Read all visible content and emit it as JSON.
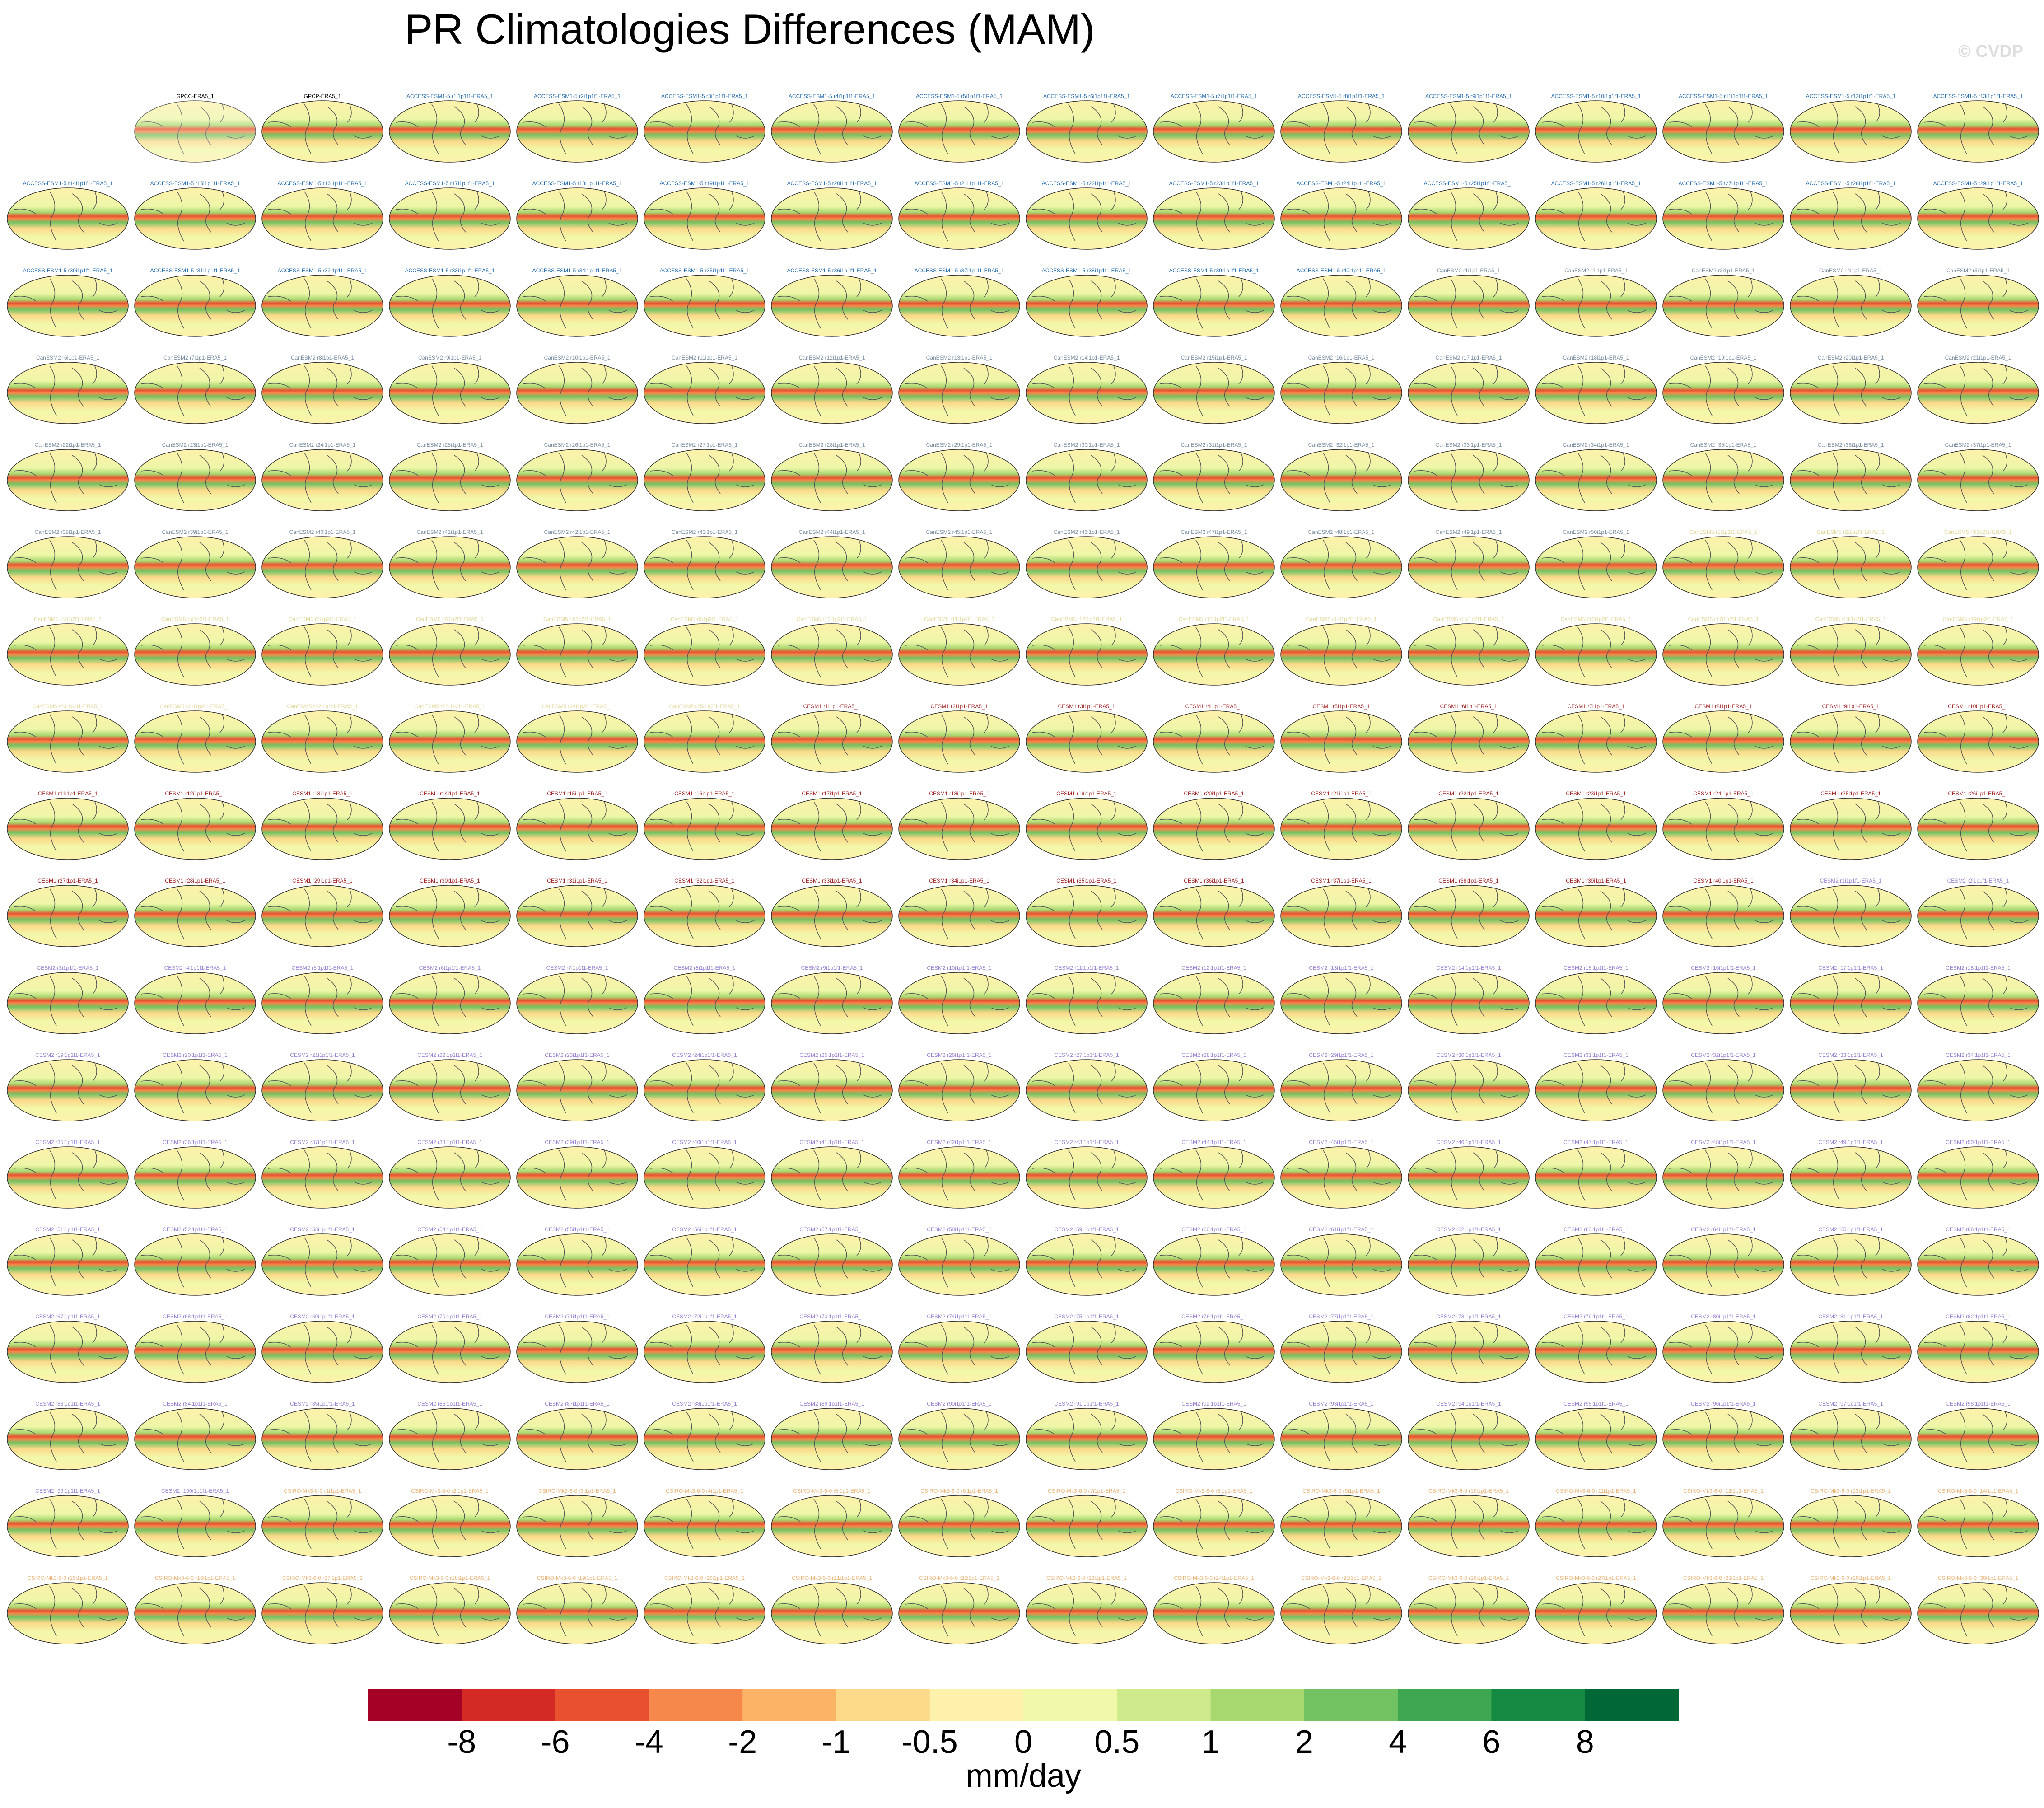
{
  "title": "PR Climatologies Differences (MAM)",
  "watermark": "© CVDP",
  "columns": 16,
  "first_column": 1,
  "models": [
    {
      "color": "#000000",
      "labels": [
        "GPCC-ERA5_1",
        "GPCP-ERA5_1"
      ]
    },
    {
      "color": "#2a6fb0",
      "labels": [
        "ACCESS-ESM1-5 r1i1p1f1-ERA5_1",
        "ACCESS-ESM1-5 r2i1p1f1-ERA5_1",
        "ACCESS-ESM1-5 r3i1p1f1-ERA5_1",
        "ACCESS-ESM1-5 r4i1p1f1-ERA5_1",
        "ACCESS-ESM1-5 r5i1p1f1-ERA5_1",
        "ACCESS-ESM1-5 r6i1p1f1-ERA5_1",
        "ACCESS-ESM1-5 r7i1p1f1-ERA5_1",
        "ACCESS-ESM1-5 r8i1p1f1-ERA5_1",
        "ACCESS-ESM1-5 r9i1p1f1-ERA5_1",
        "ACCESS-ESM1-5 r10i1p1f1-ERA5_1",
        "ACCESS-ESM1-5 r11i1p1f1-ERA5_1",
        "ACCESS-ESM1-5 r12i1p1f1-ERA5_1",
        "ACCESS-ESM1-5 r13i1p1f1-ERA5_1",
        "ACCESS-ESM1-5 r14i1p1f1-ERA5_1",
        "ACCESS-ESM1-5 r15i1p1f1-ERA5_1",
        "ACCESS-ESM1-5 r16i1p1f1-ERA5_1",
        "ACCESS-ESM1-5 r17i1p1f1-ERA5_1",
        "ACCESS-ESM1-5 r18i1p1f1-ERA5_1",
        "ACCESS-ESM1-5 r19i1p1f1-ERA5_1",
        "ACCESS-ESM1-5 r20i1p1f1-ERA5_1",
        "ACCESS-ESM1-5 r21i1p1f1-ERA5_1",
        "ACCESS-ESM1-5 r22i1p1f1-ERA5_1",
        "ACCESS-ESM1-5 r23i1p1f1-ERA5_1",
        "ACCESS-ESM1-5 r24i1p1f1-ERA5_1",
        "ACCESS-ESM1-5 r25i1p1f1-ERA5_1",
        "ACCESS-ESM1-5 r26i1p1f1-ERA5_1",
        "ACCESS-ESM1-5 r27i1p1f1-ERA5_1",
        "ACCESS-ESM1-5 r28i1p1f1-ERA5_1",
        "ACCESS-ESM1-5 r29i1p1f1-ERA5_1",
        "ACCESS-ESM1-5 r30i1p1f1-ERA5_1",
        "ACCESS-ESM1-5 r31i1p1f1-ERA5_1",
        "ACCESS-ESM1-5 r32i1p1f1-ERA5_1",
        "ACCESS-ESM1-5 r33i1p1f1-ERA5_1",
        "ACCESS-ESM1-5 r34i1p1f1-ERA5_1",
        "ACCESS-ESM1-5 r35i1p1f1-ERA5_1",
        "ACCESS-ESM1-5 r36i1p1f1-ERA5_1",
        "ACCESS-ESM1-5 r37i1p1f1-ERA5_1",
        "ACCESS-ESM1-5 r38i1p1f1-ERA5_1",
        "ACCESS-ESM1-5 r39i1p1f1-ERA5_1",
        "ACCESS-ESM1-5 r40i1p1f1-ERA5_1"
      ]
    },
    {
      "color": "#7d8fa3",
      "labels": [
        "CanESM2 r1i1p1-ERA5_1",
        "CanESM2 r2i1p1-ERA5_1",
        "CanESM2 r3i1p1-ERA5_1",
        "CanESM2 r4i1p1-ERA5_1",
        "CanESM2 r5i1p1-ERA5_1",
        "CanESM2 r6i1p1-ERA5_1",
        "CanESM2 r7i1p1-ERA5_1",
        "CanESM2 r8i1p1-ERA5_1",
        "CanESM2 r9i1p1-ERA5_1",
        "CanESM2 r10i1p1-ERA5_1",
        "CanESM2 r11i1p1-ERA5_1",
        "CanESM2 r12i1p1-ERA5_1",
        "CanESM2 r13i1p1-ERA5_1",
        "CanESM2 r14i1p1-ERA5_1",
        "CanESM2 r15i1p1-ERA5_1",
        "CanESM2 r16i1p1-ERA5_1",
        "CanESM2 r17i1p1-ERA5_1",
        "CanESM2 r18i1p1-ERA5_1",
        "CanESM2 r19i1p1-ERA5_1",
        "CanESM2 r20i1p1-ERA5_1",
        "CanESM2 r21i1p1-ERA5_1",
        "CanESM2 r22i1p1-ERA5_1",
        "CanESM2 r23i1p1-ERA5_1",
        "CanESM2 r24i1p1-ERA5_1",
        "CanESM2 r25i1p1-ERA5_1",
        "CanESM2 r26i1p1-ERA5_1",
        "CanESM2 r27i1p1-ERA5_1",
        "CanESM2 r28i1p1-ERA5_1",
        "CanESM2 r29i1p1-ERA5_1",
        "CanESM2 r30i1p1-ERA5_1",
        "CanESM2 r31i1p1-ERA5_1",
        "CanESM2 r32i1p1-ERA5_1",
        "CanESM2 r33i1p1-ERA5_1",
        "CanESM2 r34i1p1-ERA5_1",
        "CanESM2 r35i1p1-ERA5_1",
        "CanESM2 r36i1p1-ERA5_1",
        "CanESM2 r37i1p1-ERA5_1",
        "CanESM2 r38i1p1-ERA5_1",
        "CanESM2 r39i1p1-ERA5_1",
        "CanESM2 r40i1p1-ERA5_1",
        "CanESM2 r41i1p1-ERA5_1",
        "CanESM2 r42i1p1-ERA5_1",
        "CanESM2 r43i1p1-ERA5_1",
        "CanESM2 r44i1p1-ERA5_1",
        "CanESM2 r45i1p1-ERA5_1",
        "CanESM2 r46i1p1-ERA5_1",
        "CanESM2 r47i1p1-ERA5_1",
        "CanESM2 r48i1p1-ERA5_1",
        "CanESM2 r49i1p1-ERA5_1",
        "CanESM2 r50i1p1-ERA5_1"
      ]
    },
    {
      "color": "#e2d79a",
      "labels": [
        "CanESM5 r1i1p2f1-ERA5_1",
        "CanESM5 r2i1p2f1-ERA5_1",
        "CanESM5 r3i1p2f1-ERA5_1",
        "CanESM5 r4i1p2f1-ERA5_1",
        "CanESM5 r5i1p2f1-ERA5_1",
        "CanESM5 r6i1p2f1-ERA5_1",
        "CanESM5 r7i1p2f1-ERA5_1",
        "CanESM5 r8i1p2f1-ERA5_1",
        "CanESM5 r9i1p2f1-ERA5_1",
        "CanESM5 r10i1p2f1-ERA5_1",
        "CanESM5 r11i1p2f1-ERA5_1",
        "CanESM5 r12i1p2f1-ERA5_1",
        "CanESM5 r13i1p2f1-ERA5_1",
        "CanESM5 r14i1p2f1-ERA5_1",
        "CanESM5 r15i1p2f1-ERA5_1",
        "CanESM5 r16i1p2f1-ERA5_1",
        "CanESM5 r17i1p2f1-ERA5_1",
        "CanESM5 r18i1p2f1-ERA5_1",
        "CanESM5 r19i1p2f1-ERA5_1",
        "CanESM5 r20i1p2f1-ERA5_1",
        "CanESM5 r21i1p2f1-ERA5_1",
        "CanESM5 r22i1p2f1-ERA5_1",
        "CanESM5 r23i1p2f1-ERA5_1",
        "CanESM5 r24i1p2f1-ERA5_1",
        "CanESM5 r25i1p2f1-ERA5_1"
      ]
    },
    {
      "color": "#a5282a",
      "labels": [
        "CESM1 r1i1p1-ERA5_1",
        "CESM1 r2i1p1-ERA5_1",
        "CESM1 r3i1p1-ERA5_1",
        "CESM1 r4i1p1-ERA5_1",
        "CESM1 r5i1p1-ERA5_1",
        "CESM1 r6i1p1-ERA5_1",
        "CESM1 r7i1p1-ERA5_1",
        "CESM1 r8i1p1-ERA5_1",
        "CESM1 r9i1p1-ERA5_1",
        "CESM1 r10i1p1-ERA5_1",
        "CESM1 r11i1p1-ERA5_1",
        "CESM1 r12i1p1-ERA5_1",
        "CESM1 r13i1p1-ERA5_1",
        "CESM1 r14i1p1-ERA5_1",
        "CESM1 r15i1p1-ERA5_1",
        "CESM1 r16i1p1-ERA5_1",
        "CESM1 r17i1p1-ERA5_1",
        "CESM1 r18i1p1-ERA5_1",
        "CESM1 r19i1p1-ERA5_1",
        "CESM1 r20i1p1-ERA5_1",
        "CESM1 r21i1p1-ERA5_1",
        "CESM1 r22i1p1-ERA5_1",
        "CESM1 r23i1p1-ERA5_1",
        "CESM1 r24i1p1-ERA5_1",
        "CESM1 r25i1p1-ERA5_1",
        "CESM1 r26i1p1-ERA5_1",
        "CESM1 r27i1p1-ERA5_1",
        "CESM1 r28i1p1-ERA5_1",
        "CESM1 r29i1p1-ERA5_1",
        "CESM1 r30i1p1-ERA5_1",
        "CESM1 r31i1p1-ERA5_1",
        "CESM1 r32i1p1-ERA5_1",
        "CESM1 r33i1p1-ERA5_1",
        "CESM1 r34i1p1-ERA5_1",
        "CESM1 r35i1p1-ERA5_1",
        "CESM1 r36i1p1-ERA5_1",
        "CESM1 r37i1p1-ERA5_1",
        "CESM1 r38i1p1-ERA5_1",
        "CESM1 r39i1p1-ERA5_1",
        "CESM1 r40i1p1-ERA5_1"
      ]
    },
    {
      "color": "#9b84d2",
      "labels": [
        "CESM2 r1i1p1f1-ERA5_1",
        "CESM2 r2i1p1f1-ERA5_1",
        "CESM2 r3i1p1f1-ERA5_1",
        "CESM2 r4i1p1f1-ERA5_1",
        "CESM2 r5i1p1f1-ERA5_1",
        "CESM2 r6i1p1f1-ERA5_1",
        "CESM2 r7i1p1f1-ERA5_1",
        "CESM2 r8i1p1f1-ERA5_1",
        "CESM2 r9i1p1f1-ERA5_1",
        "CESM2 r10i1p1f1-ERA5_1",
        "CESM2 r11i1p1f1-ERA5_1",
        "CESM2 r12i1p1f1-ERA5_1",
        "CESM2 r13i1p1f1-ERA5_1",
        "CESM2 r14i1p1f1-ERA5_1",
        "CESM2 r15i1p1f1-ERA5_1",
        "CESM2 r16i1p1f1-ERA5_1",
        "CESM2 r17i1p1f1-ERA5_1",
        "CESM2 r18i1p1f1-ERA5_1",
        "CESM2 r19i1p1f1-ERA5_1",
        "CESM2 r20i1p1f1-ERA5_1",
        "CESM2 r21i1p1f1-ERA5_1",
        "CESM2 r22i1p1f1-ERA5_1",
        "CESM2 r23i1p1f1-ERA5_1",
        "CESM2 r24i1p1f1-ERA5_1",
        "CESM2 r25i1p1f1-ERA5_1",
        "CESM2 r26i1p1f1-ERA5_1",
        "CESM2 r27i1p1f1-ERA5_1",
        "CESM2 r28i1p1f1-ERA5_1",
        "CESM2 r29i1p1f1-ERA5_1",
        "CESM2 r30i1p1f1-ERA5_1",
        "CESM2 r31i1p1f1-ERA5_1",
        "CESM2 r32i1p1f1-ERA5_1",
        "CESM2 r33i1p1f1-ERA5_1",
        "CESM2 r34i1p1f1-ERA5_1",
        "CESM2 r35i1p1f1-ERA5_1",
        "CESM2 r36i1p1f1-ERA5_1",
        "CESM2 r37i1p1f1-ERA5_1",
        "CESM2 r38i1p1f1-ERA5_1",
        "CESM2 r39i1p1f1-ERA5_1",
        "CESM2 r40i1p1f1-ERA5_1",
        "CESM2 r41i1p1f1-ERA5_1",
        "CESM2 r42i1p1f1-ERA5_1",
        "CESM2 r43i1p1f1-ERA5_1",
        "CESM2 r44i1p1f1-ERA5_1",
        "CESM2 r45i1p1f1-ERA5_1",
        "CESM2 r46i1p1f1-ERA5_1",
        "CESM2 r47i1p1f1-ERA5_1",
        "CESM2 r48i1p1f1-ERA5_1",
        "CESM2 r49i1p1f1-ERA5_1",
        "CESM2 r50i1p1f1-ERA5_1",
        "CESM2 r51i1p1f1-ERA5_1",
        "CESM2 r52i1p1f1-ERA5_1",
        "CESM2 r53i1p1f1-ERA5_1",
        "CESM2 r54i1p1f1-ERA5_1",
        "CESM2 r55i1p1f1-ERA5_1",
        "CESM2 r56i1p1f1-ERA5_1",
        "CESM2 r57i1p1f1-ERA5_1",
        "CESM2 r58i1p1f1-ERA5_1",
        "CESM2 r59i1p1f1-ERA5_1",
        "CESM2 r60i1p1f1-ERA5_1",
        "CESM2 r61i1p1f1-ERA5_1",
        "CESM2 r62i1p1f1-ERA5_1",
        "CESM2 r63i1p1f1-ERA5_1",
        "CESM2 r64i1p1f1-ERA5_1",
        "CESM2 r65i1p1f1-ERA5_1",
        "CESM2 r66i1p1f1-ERA5_1",
        "CESM2 r67i1p1f1-ERA5_1",
        "CESM2 r68i1p1f1-ERA5_1",
        "CESM2 r69i1p1f1-ERA5_1",
        "CESM2 r70i1p1f1-ERA5_1",
        "CESM2 r71i1p1f1-ERA5_1",
        "CESM2 r72i1p1f1-ERA5_1",
        "CESM2 r73i1p1f1-ERA5_1",
        "CESM2 r74i1p1f1-ERA5_1",
        "CESM2 r75i1p1f1-ERA5_1",
        "CESM2 r76i1p1f1-ERA5_1",
        "CESM2 r77i1p1f1-ERA5_1",
        "CESM2 r78i1p1f1-ERA5_1",
        "CESM2 r79i1p1f1-ERA5_1",
        "CESM2 r80i1p1f1-ERA5_1",
        "CESM2 r81i1p1f1-ERA5_1",
        "CESM2 r82i1p1f1-ERA5_1",
        "CESM2 r83i1p1f1-ERA5_1",
        "CESM2 r84i1p1f1-ERA5_1",
        "CESM2 r85i1p1f1-ERA5_1",
        "CESM2 r86i1p1f1-ERA5_1",
        "CESM2 r87i1p1f1-ERA5_1",
        "CESM2 r88i1p1f1-ERA5_1",
        "CESM2 r89i1p1f1-ERA5_1",
        "CESM2 r90i1p1f1-ERA5_1",
        "CESM2 r91i1p1f1-ERA5_1",
        "CESM2 r92i1p1f1-ERA5_1",
        "CESM2 r93i1p1f1-ERA5_1",
        "CESM2 r94i1p1f1-ERA5_1",
        "CESM2 r95i1p1f1-ERA5_1",
        "CESM2 r96i1p1f1-ERA5_1",
        "CESM2 r97i1p1f1-ERA5_1",
        "CESM2 r98i1p1f1-ERA5_1",
        "CESM2 r99i1p1f1-ERA5_1",
        "CESM2 r100i1p1f1-ERA5_1"
      ]
    },
    {
      "color": "#e9b57a",
      "labels": [
        "CSIRO-Mk3-6-0 r1i1p1-ERA5_1",
        "CSIRO-Mk3-6-0 r2i1p1-ERA5_1",
        "CSIRO-Mk3-6-0 r3i1p1-ERA5_1",
        "CSIRO-Mk3-6-0 r4i1p1-ERA5_1",
        "CSIRO-Mk3-6-0 r5i1p1-ERA5_1",
        "CSIRO-Mk3-6-0 r6i1p1-ERA5_1",
        "CSIRO-Mk3-6-0 r7i1p1-ERA5_1",
        "CSIRO-Mk3-6-0 r8i1p1-ERA5_1",
        "CSIRO-Mk3-6-0 r9i1p1-ERA5_1",
        "CSIRO-Mk3-6-0 r10i1p1-ERA5_1",
        "CSIRO-Mk3-6-0 r11i1p1-ERA5_1",
        "CSIRO-Mk3-6-0 r12i1p1-ERA5_1",
        "CSIRO-Mk3-6-0 r13i1p1-ERA5_1",
        "CSIRO-Mk3-6-0 r14i1p1-ERA5_1",
        "CSIRO-Mk3-6-0 r15i1p1-ERA5_1",
        "CSIRO-Mk3-6-0 r16i1p1-ERA5_1",
        "CSIRO-Mk3-6-0 r17i1p1-ERA5_1",
        "CSIRO-Mk3-6-0 r18i1p1-ERA5_1",
        "CSIRO-Mk3-6-0 r19i1p1-ERA5_1",
        "CSIRO-Mk3-6-0 r20i1p1-ERA5_1",
        "CSIRO-Mk3-6-0 r21i1p1-ERA5_1",
        "CSIRO-Mk3-6-0 r22i1p1-ERA5_1",
        "CSIRO-Mk3-6-0 r23i1p1-ERA5_1",
        "CSIRO-Mk3-6-0 r24i1p1-ERA5_1",
        "CSIRO-Mk3-6-0 r25i1p1-ERA5_1",
        "CSIRO-Mk3-6-0 r26i1p1-ERA5_1",
        "CSIRO-Mk3-6-0 r27i1p1-ERA5_1",
        "CSIRO-Mk3-6-0 r28i1p1-ERA5_1",
        "CSIRO-Mk3-6-0 r29i1p1-ERA5_1",
        "CSIRO-Mk3-6-0 r30i1p1-ERA5_1"
      ]
    }
  ],
  "colorbar": {
    "levels": [
      -8,
      -6,
      -4,
      -2,
      -1,
      -0.5,
      0,
      0.5,
      1,
      2,
      4,
      6,
      8
    ],
    "colors": [
      "#a50026",
      "#d42a26",
      "#e8502f",
      "#f5884a",
      "#fbb366",
      "#fdd98a",
      "#fef1ab",
      "#f2f8aa",
      "#cfea8a",
      "#a8d870",
      "#73c262",
      "#3fa652",
      "#158a42",
      "#006837"
    ],
    "units": "mm/day"
  }
}
